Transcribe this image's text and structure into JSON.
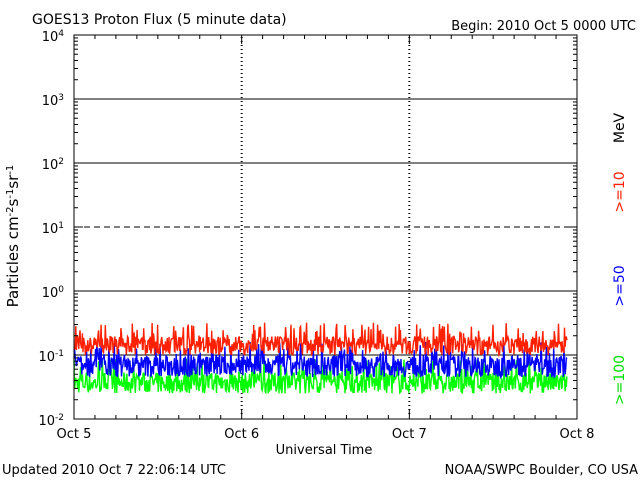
{
  "chart_data": {
    "type": "line",
    "title": "GOES13 Proton Flux (5 minute data)",
    "begin_label": "Begin: 2010 Oct 5 0000 UTC",
    "xlabel": "Universal Time",
    "ylabel": "Particles cm⁻²s⁻¹sr⁻¹",
    "y_scale": "log",
    "ylim": [
      0.01,
      10000
    ],
    "y_ticks": [
      {
        "value": 0.01,
        "base": "10",
        "exp": "-2"
      },
      {
        "value": 0.1,
        "base": "10",
        "exp": "-1"
      },
      {
        "value": 1,
        "base": "10",
        "exp": "0"
      },
      {
        "value": 10,
        "base": "10",
        "exp": "1"
      },
      {
        "value": 100,
        "base": "10",
        "exp": "2"
      },
      {
        "value": 1000,
        "base": "10",
        "exp": "3"
      },
      {
        "value": 10000,
        "base": "10",
        "exp": "4"
      }
    ],
    "x_ticks": [
      {
        "value": 0,
        "label": "Oct 5"
      },
      {
        "value": 1,
        "label": "Oct 6"
      },
      {
        "value": 2,
        "label": "Oct 7"
      },
      {
        "value": 3,
        "label": "Oct 8"
      }
    ],
    "xlim": [
      0,
      3
    ],
    "hlines": [
      {
        "value": 0.1,
        "style": "solid"
      },
      {
        "value": 1,
        "style": "solid"
      },
      {
        "value": 10,
        "style": "dashed"
      },
      {
        "value": 100,
        "style": "solid"
      },
      {
        "value": 1000,
        "style": "solid"
      }
    ],
    "series": [
      {
        "name": ">=10",
        "color": "#ff2000",
        "typical": 0.15,
        "low": 0.1,
        "high": 0.32
      },
      {
        "name": ">=50",
        "color": "#0000ff",
        "typical": 0.075,
        "low": 0.045,
        "high": 0.16
      },
      {
        "name": ">=100",
        "color": "#00ff00",
        "typical": 0.04,
        "low": 0.025,
        "high": 0.09
      }
    ],
    "unit_label": "MeV"
  },
  "footer": {
    "updated": "Updated 2010 Oct  7 22:06:14 UTC",
    "credit": "NOAA/SWPC Boulder, CO USA"
  }
}
